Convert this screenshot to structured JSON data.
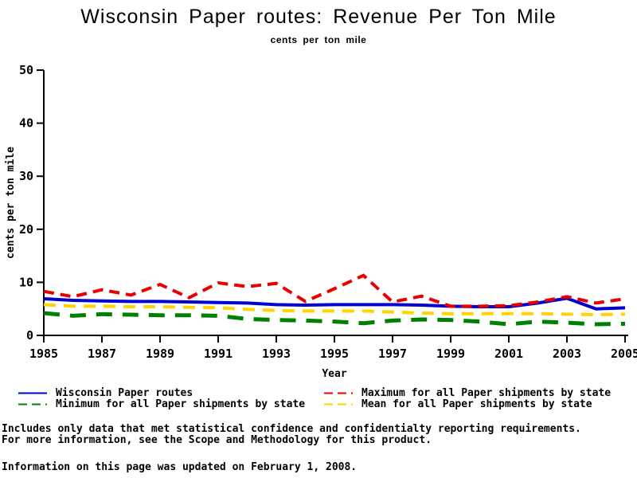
{
  "chart_data": {
    "type": "line",
    "title": "Wisconsin Paper routes: Revenue Per Ton Mile",
    "subtitle": "cents per ton mile",
    "xlabel": "Year",
    "ylabel": "cents per ton mile",
    "xlim": [
      1985,
      2005
    ],
    "ylim": [
      0,
      50
    ],
    "yticks": [
      0,
      10,
      20,
      30,
      40,
      50
    ],
    "xticks": [
      1985,
      1987,
      1989,
      1991,
      1993,
      1995,
      1997,
      1999,
      2001,
      2003,
      2005
    ],
    "grid": false,
    "legend_position": "bottom-two-columns",
    "x": [
      1985,
      1986,
      1987,
      1988,
      1989,
      1990,
      1991,
      1992,
      1993,
      1994,
      1995,
      1996,
      1997,
      1998,
      1999,
      2000,
      2001,
      2002,
      2003,
      2004,
      2005
    ],
    "series": [
      {
        "name": "Wisconsin Paper routes",
        "color": "#0000d0",
        "style": "solid",
        "width": 4,
        "dash": "",
        "values": [
          6.9,
          6.6,
          6.5,
          6.4,
          6.4,
          6.3,
          6.2,
          6.1,
          5.8,
          5.7,
          5.8,
          5.8,
          5.8,
          5.7,
          5.5,
          5.4,
          5.4,
          6.1,
          7.0,
          5.0,
          5.2
        ]
      },
      {
        "name": "Maximum for all Paper shipments by state",
        "color": "#e80000",
        "style": "dashed",
        "width": 4,
        "dash": "13,8",
        "values": [
          8.3,
          7.3,
          8.6,
          7.6,
          9.6,
          7.1,
          9.9,
          9.2,
          9.8,
          6.4,
          8.8,
          11.3,
          6.3,
          7.4,
          5.5,
          5.5,
          5.6,
          6.3,
          7.3,
          6.1,
          6.9
        ]
      },
      {
        "name": "Minimum for all Paper shipments by state",
        "color": "#008000",
        "style": "dashed",
        "width": 5,
        "dash": "20,13",
        "values": [
          4.2,
          3.7,
          4.0,
          3.9,
          3.8,
          3.8,
          3.7,
          3.1,
          2.9,
          2.8,
          2.6,
          2.3,
          2.8,
          3.0,
          2.9,
          2.6,
          2.1,
          2.6,
          2.4,
          2.1,
          2.2
        ]
      },
      {
        "name": "Mean for all Paper shipments by state",
        "color": "#ffd400",
        "style": "dashed",
        "width": 4,
        "dash": "15,10",
        "values": [
          5.8,
          5.5,
          5.5,
          5.4,
          5.4,
          5.3,
          5.2,
          4.9,
          4.7,
          4.6,
          4.6,
          4.6,
          4.4,
          4.2,
          4.1,
          4.1,
          4.1,
          4.1,
          4.0,
          3.9,
          4.0
        ]
      }
    ],
    "draw_order": [
      0,
      2,
      3,
      1
    ]
  },
  "footer": {
    "line1": "Includes only data that met statistical confidence and confidentialty reporting requirements.",
    "line2": "For more information, see the Scope and Methodology for this product.",
    "updated": "Information on this page was updated on February 1, 2008."
  }
}
